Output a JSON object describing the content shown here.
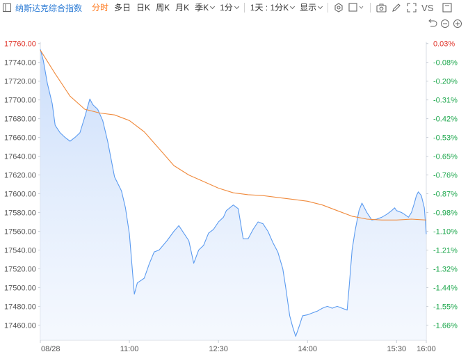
{
  "toolbar": {
    "title": "纳斯达克综合指数",
    "tabs": [
      {
        "label": "分时",
        "active": true,
        "dropdown": false
      },
      {
        "label": "多日",
        "active": false,
        "dropdown": false
      },
      {
        "label": "日K",
        "active": false,
        "dropdown": false
      },
      {
        "label": "周K",
        "active": false,
        "dropdown": false
      },
      {
        "label": "月K",
        "active": false,
        "dropdown": false
      },
      {
        "label": "季K",
        "active": false,
        "dropdown": true
      },
      {
        "label": "1分",
        "active": false,
        "dropdown": true
      }
    ],
    "range_label": "1天 : 1分K",
    "display_label": "显示",
    "vs_label": "VS",
    "icons": [
      "settings-icon",
      "square-icon",
      "camera-icon",
      "pen-icon",
      "fullscreen-icon",
      "vs-icon",
      "panel-icon"
    ]
  },
  "chart_controls": [
    "undo-icon",
    "zoom-out-icon",
    "zoom-in-icon"
  ],
  "colors": {
    "price_line": "#5b9bf0",
    "price_fill_top": "#cfe0fb",
    "avg_line": "#f08a3c",
    "pos_text": "#e0352b",
    "neg_text": "#1aa64a",
    "axis_text": "#555555",
    "grid": "#e9eef5"
  },
  "chart_data": {
    "type": "line",
    "y_ticks": [
      "17760.00",
      "17740.00",
      "17720.00",
      "17700.00",
      "17680.00",
      "17660.00",
      "17640.00",
      "17620.00",
      "17600.00",
      "17580.00",
      "17560.00",
      "17540.00",
      "17520.00",
      "17500.00",
      "17480.00",
      "17460.00"
    ],
    "pct_ticks": [
      "0.03%",
      "-0.08%",
      "-0.20%",
      "-0.31%",
      "-0.42%",
      "-0.53%",
      "-0.65%",
      "-0.76%",
      "-0.87%",
      "-0.98%",
      "-1.10%",
      "-1.21%",
      "-1.32%",
      "-1.44%",
      "-1.55%",
      "-1.66%"
    ],
    "x_ticks": [
      "08/28",
      "11:00",
      "12:30",
      "14:00",
      "15:30",
      "16:00"
    ],
    "ylim": [
      17444,
      17762
    ],
    "series": [
      {
        "role": "price",
        "x": [
          "09:30",
          "09:33",
          "09:37",
          "09:42",
          "09:45",
          "09:50",
          "09:55",
          "10:00",
          "10:05",
          "10:10",
          "10:15",
          "10:20",
          "10:23",
          "10:28",
          "10:33",
          "10:38",
          "10:45",
          "10:52",
          "10:56",
          "11:00",
          "11:05",
          "11:08",
          "11:15",
          "11:20",
          "11:25",
          "11:30",
          "11:38",
          "11:45",
          "11:50",
          "11:55",
          "12:00",
          "12:05",
          "12:10",
          "12:15",
          "12:20",
          "12:25",
          "12:30",
          "12:35",
          "12:38",
          "12:45",
          "12:50",
          "12:55",
          "13:00",
          "13:05",
          "13:10",
          "13:15",
          "13:20",
          "13:25",
          "13:30",
          "13:35",
          "13:38",
          "13:42",
          "13:45",
          "13:48",
          "13:52",
          "13:55",
          "14:00",
          "14:05",
          "14:10",
          "14:15",
          "14:20",
          "14:25",
          "14:30",
          "14:35",
          "14:40",
          "14:42",
          "14:45",
          "14:48",
          "14:52",
          "14:55",
          "15:00",
          "15:05",
          "15:10",
          "15:15",
          "15:20",
          "15:25",
          "15:28",
          "15:30",
          "15:35",
          "15:38",
          "15:42",
          "15:45",
          "15:48",
          "15:50",
          "15:52",
          "15:55",
          "15:58",
          "16:00"
        ],
        "values": [
          17754,
          17742,
          17718,
          17696,
          17673,
          17665,
          17660,
          17656,
          17660,
          17665,
          17682,
          17701,
          17695,
          17690,
          17678,
          17656,
          17618,
          17603,
          17585,
          17557,
          17493,
          17505,
          17510,
          17525,
          17538,
          17540,
          17550,
          17560,
          17566,
          17558,
          17550,
          17526,
          17540,
          17545,
          17558,
          17562,
          17570,
          17575,
          17582,
          17588,
          17584,
          17552,
          17552,
          17562,
          17570,
          17568,
          17560,
          17548,
          17538,
          17520,
          17500,
          17470,
          17458,
          17448,
          17460,
          17470,
          17471,
          17473,
          17475,
          17478,
          17480,
          17478,
          17480,
          17478,
          17476,
          17500,
          17540,
          17560,
          17582,
          17590,
          17580,
          17572,
          17573,
          17575,
          17578,
          17582,
          17585,
          17582,
          17580,
          17578,
          17575,
          17580,
          17590,
          17598,
          17602,
          17598,
          17585,
          17557
        ]
      },
      {
        "role": "average",
        "x": [
          "09:30",
          "09:45",
          "10:00",
          "10:15",
          "10:30",
          "10:45",
          "11:00",
          "11:15",
          "11:30",
          "11:45",
          "12:00",
          "12:15",
          "12:30",
          "12:45",
          "13:00",
          "13:15",
          "13:30",
          "13:45",
          "14:00",
          "14:15",
          "14:30",
          "14:45",
          "15:00",
          "15:15",
          "15:30",
          "15:45",
          "16:00"
        ],
        "values": [
          17753,
          17728,
          17704,
          17690,
          17686,
          17684,
          17678,
          17666,
          17648,
          17630,
          17620,
          17613,
          17606,
          17601,
          17599,
          17598,
          17596,
          17594,
          17592,
          17588,
          17582,
          17576,
          17573,
          17572,
          17572,
          17573,
          17572
        ]
      }
    ]
  }
}
